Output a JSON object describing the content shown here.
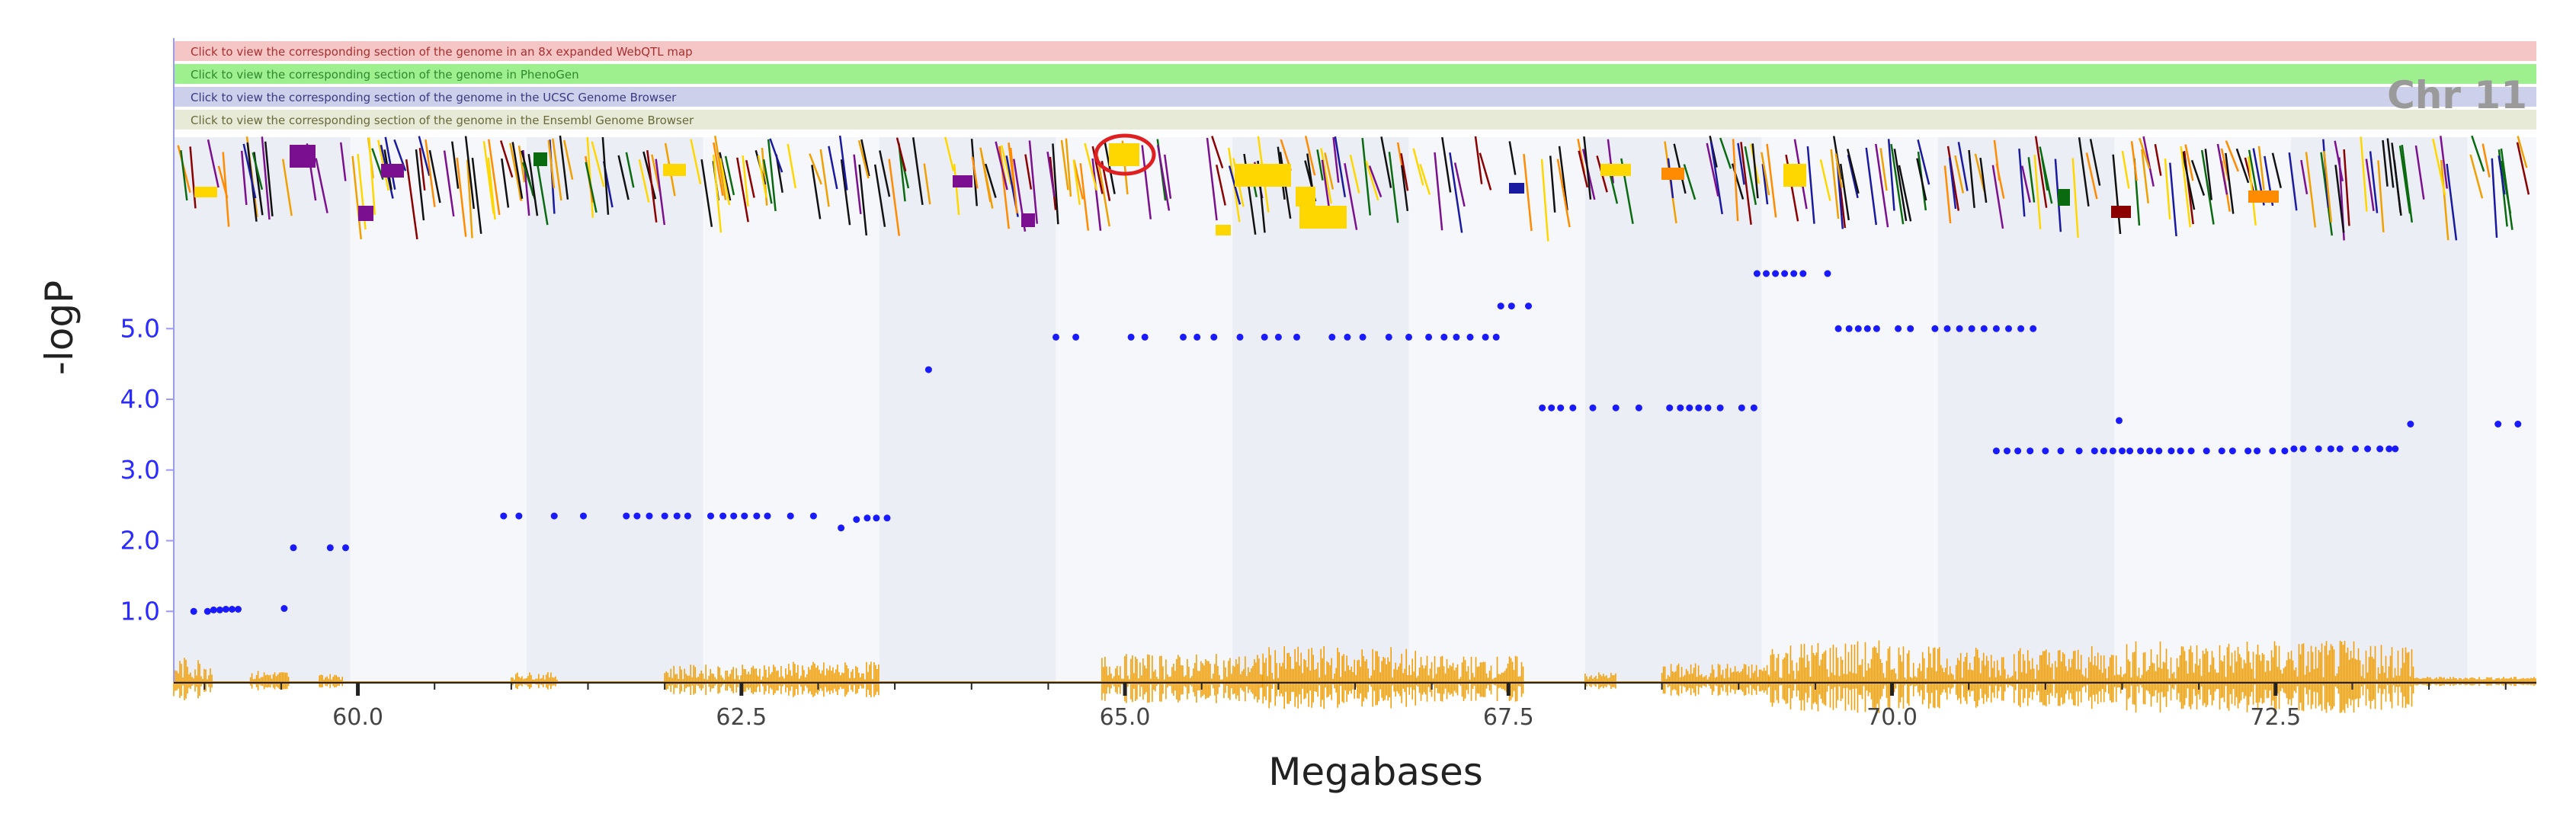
{
  "links": [
    {
      "text": "Click to view the corresponding section of the genome in an 8x expanded WebQTL map",
      "bg": "#f4c6c6",
      "fg": "#a83030"
    },
    {
      "text": "Click to view the corresponding section of the genome in PhenoGen",
      "bg": "#9ef08e",
      "fg": "#2d8a2d"
    },
    {
      "text": "Click to view the corresponding section of the genome in the UCSC Genome Browser",
      "bg": "#cdd0ea",
      "fg": "#3a3a80"
    },
    {
      "text": "Click to view the corresponding section of the genome in the Ensembl Genome Browser",
      "bg": "#e6ead6",
      "fg": "#6a6a3a"
    }
  ],
  "chromosome_label": "Chr 11",
  "colors": {
    "points": "#1a1aff",
    "density": "#f2a00a",
    "band_dark": "#eceef6",
    "band_light": "#f6f7fb",
    "axis": "#9999ff",
    "highlight_circle": "#e02020"
  },
  "chart_data": {
    "type": "scatter",
    "xlabel": "Megabases",
    "ylabel": "-logP",
    "xlim": [
      58.8,
      74.2
    ],
    "ylim": [
      0,
      6.2
    ],
    "x_ticks": [
      60.0,
      62.5,
      65.0,
      67.5,
      70.0,
      72.5
    ],
    "x_tick_labels": [
      "60.0",
      "62.5",
      "65.0",
      "67.5",
      "70.0",
      "72.5"
    ],
    "y_ticks": [
      1.0,
      2.0,
      3.0,
      4.0,
      5.0
    ],
    "y_tick_labels": [
      "1.0",
      "2.0",
      "3.0",
      "4.0",
      "5.0"
    ],
    "grid": false,
    "band_edges": [
      58.8,
      59.95,
      61.1,
      62.25,
      63.4,
      64.55,
      65.7,
      66.85,
      68.0,
      69.15,
      70.3,
      71.45,
      72.6,
      73.75,
      74.2
    ],
    "series": [
      {
        "x": [
          58.93,
          59.02,
          59.06,
          59.1,
          59.14,
          59.18,
          59.22,
          59.52,
          59.58,
          59.82,
          59.92,
          60.95,
          61.05,
          61.28,
          61.47,
          61.75,
          61.82,
          61.9,
          62.0,
          62.08,
          62.15,
          62.3,
          62.38,
          62.45,
          62.52,
          62.6,
          62.67,
          62.82,
          62.97,
          63.15,
          63.25,
          63.32,
          63.38,
          63.45,
          63.72,
          64.55,
          64.68,
          65.04,
          65.13,
          65.38,
          65.47,
          65.58,
          65.75,
          65.91,
          66.0,
          66.12,
          66.35,
          66.45,
          66.55,
          66.72,
          66.85,
          66.98,
          67.08,
          67.16,
          67.25,
          67.35,
          67.42,
          67.45,
          67.52,
          67.63,
          67.72,
          67.78,
          67.84,
          67.92,
          68.05,
          68.2,
          68.35,
          68.55,
          68.62,
          68.68,
          68.74,
          68.8,
          68.88,
          69.02,
          69.1,
          69.12,
          69.18,
          69.24,
          69.3,
          69.36,
          69.42,
          69.58,
          69.65,
          69.72,
          69.78,
          69.84,
          69.9,
          70.04,
          70.12,
          70.28,
          70.36,
          70.44,
          70.52,
          70.6,
          70.68,
          70.76,
          70.84,
          70.92,
          70.68,
          70.75,
          70.82,
          70.9,
          71.0,
          71.1,
          71.22,
          71.32,
          71.38,
          71.44,
          71.5,
          71.55,
          71.62,
          71.68,
          71.74,
          71.82,
          71.88,
          71.95,
          72.05,
          72.15,
          72.22,
          72.32,
          72.38,
          72.48,
          72.56,
          72.62,
          72.68,
          72.78,
          72.86,
          72.92,
          73.02,
          73.1,
          73.18,
          73.24,
          73.28,
          71.48,
          73.38,
          73.95,
          74.08
        ],
        "y": [
          1.0,
          1.0,
          1.02,
          1.02,
          1.03,
          1.03,
          1.03,
          1.04,
          1.9,
          1.9,
          1.9,
          2.35,
          2.35,
          2.35,
          2.35,
          2.35,
          2.35,
          2.35,
          2.35,
          2.35,
          2.35,
          2.35,
          2.35,
          2.35,
          2.35,
          2.35,
          2.35,
          2.35,
          2.35,
          2.18,
          2.3,
          2.32,
          2.32,
          2.32,
          4.42,
          4.88,
          4.88,
          4.88,
          4.88,
          4.88,
          4.88,
          4.88,
          4.88,
          4.88,
          4.88,
          4.88,
          4.88,
          4.88,
          4.88,
          4.88,
          4.88,
          4.88,
          4.88,
          4.88,
          4.88,
          4.88,
          4.88,
          5.32,
          5.32,
          5.32,
          3.88,
          3.88,
          3.88,
          3.88,
          3.88,
          3.88,
          3.88,
          3.88,
          3.88,
          3.88,
          3.88,
          3.88,
          3.88,
          3.88,
          3.88,
          5.78,
          5.78,
          5.78,
          5.78,
          5.78,
          5.78,
          5.78,
          5.0,
          5.0,
          5.0,
          5.0,
          5.0,
          5.0,
          5.0,
          5.0,
          5.0,
          5.0,
          5.0,
          5.0,
          5.0,
          5.0,
          5.0,
          5.0,
          3.27,
          3.27,
          3.27,
          3.27,
          3.27,
          3.27,
          3.27,
          3.27,
          3.27,
          3.27,
          3.27,
          3.27,
          3.27,
          3.27,
          3.27,
          3.27,
          3.27,
          3.27,
          3.27,
          3.27,
          3.27,
          3.27,
          3.27,
          3.27,
          3.27,
          3.3,
          3.3,
          3.3,
          3.3,
          3.3,
          3.3,
          3.3,
          3.3,
          3.3,
          3.3,
          3.7,
          3.65,
          3.65,
          3.65
        ]
      }
    ]
  }
}
